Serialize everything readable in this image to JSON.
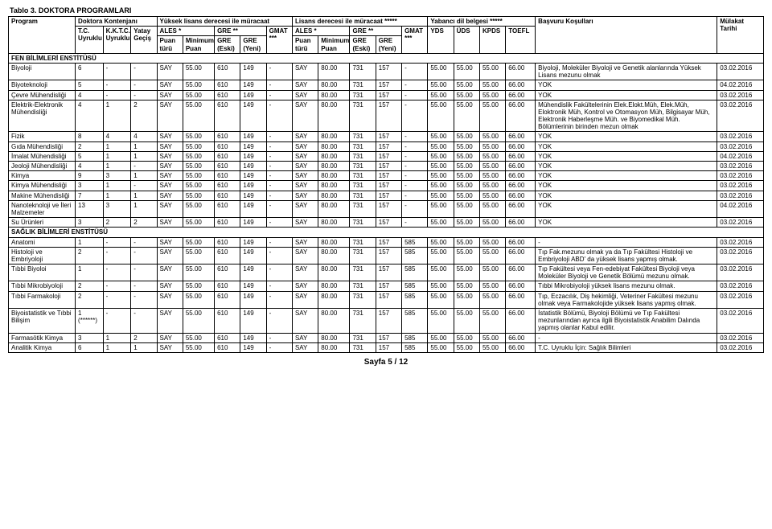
{
  "caption": "Tablo 3. DOKTORA PROGRAMLARI",
  "header": {
    "row1": {
      "program": "Program",
      "kontenjan": "Doktora Kontenjanı",
      "yuksek_lisans": "Yüksek lisans derecesi ile müracaat",
      "lisans": "Lisans derecesi ile müracaat *****",
      "yabanci": "Yabancı dil belgesi *****",
      "basvuru": "Başvuru Koşulları",
      "mulakat": "Mülakat Tarihi"
    },
    "row2": {
      "ales": "ALES *",
      "gre": "GRE **",
      "gmat": "GMAT ***",
      "ales2": "ALES *",
      "gre2": "GRE **",
      "gmat2": "GMAT ***"
    },
    "row3": {
      "tc": "T.C. Uyruklu",
      "kktc": "K.K.T.C. Uyruklu",
      "yatay": "Yatay Geçiş",
      "puanturu": "Puan türü",
      "minpuan": "Minimum Puan",
      "greeski": "GRE (Eski)",
      "greyeni": "GRE (Yeni)",
      "yds": "YDS",
      "uds": "ÜDS",
      "kpds": "KPDS",
      "toefl": "TOEFL"
    }
  },
  "sections": [
    {
      "label": "FEN BİLİMLERİ ENSTİTÜSÜ"
    },
    {
      "label": "SAĞLIK BİLİMLERİ ENSTİTÜSÜ"
    }
  ],
  "rows_fen": [
    {
      "program": "Biyoloji",
      "tc": "6",
      "kktc": "-",
      "yatay": "-",
      "pt": "SAY",
      "min": "55.00",
      "ge": "610",
      "gy": "149",
      "gmat": "-",
      "pt2": "SAY",
      "min2": "80.00",
      "ge2": "731",
      "gy2": "157",
      "gmat2": "-",
      "yds": "55.00",
      "uds": "55.00",
      "kpds": "55.00",
      "toefl": "66.00",
      "bas": "Biyoloji, Moleküler Biyoloji ve Genetik alanlarında Yüksek Lisans mezunu olmak",
      "tar": "03.02.2016"
    },
    {
      "program": "Biyoteknoloji",
      "tc": "5",
      "kktc": "-",
      "yatay": "-",
      "pt": "SAY",
      "min": "55.00",
      "ge": "610",
      "gy": "149",
      "gmat": "-",
      "pt2": "SAY",
      "min2": "80.00",
      "ge2": "731",
      "gy2": "157",
      "gmat2": "-",
      "yds": "55.00",
      "uds": "55.00",
      "kpds": "55.00",
      "toefl": "66.00",
      "bas": "YOK",
      "tar": "04.02.2016"
    },
    {
      "program": "Çevre Mühendisliği",
      "tc": "4",
      "kktc": "-",
      "yatay": "-",
      "pt": "SAY",
      "min": "55.00",
      "ge": "610",
      "gy": "149",
      "gmat": "-",
      "pt2": "SAY",
      "min2": "80.00",
      "ge2": "731",
      "gy2": "157",
      "gmat2": "-",
      "yds": "55.00",
      "uds": "55.00",
      "kpds": "55.00",
      "toefl": "66.00",
      "bas": "YOK",
      "tar": "03.02.2016"
    },
    {
      "program": "Elektrik-Elektronik Mühendisliği",
      "tc": "4",
      "kktc": "1",
      "yatay": "2",
      "pt": "SAY",
      "min": "55.00",
      "ge": "610",
      "gy": "149",
      "gmat": "-",
      "pt2": "SAY",
      "min2": "80.00",
      "ge2": "731",
      "gy2": "157",
      "gmat2": "-",
      "yds": "55.00",
      "uds": "55.00",
      "kpds": "55.00",
      "toefl": "66.00",
      "bas": "Mühendislik Fakültelerinin Elek.Elokt.Müh, Elek.Müh, Eloktronik Müh, Kontrol ve Otomasyon Müh, Bilgisayar Müh, Elektronik Haberleşme Müh. ve Biyomedikal Müh. Bölümlerinin birinden mezun olmak",
      "tar": "03.02.2016"
    },
    {
      "program": "Fizik",
      "tc": "8",
      "kktc": "4",
      "yatay": "4",
      "pt": "SAY",
      "min": "55.00",
      "ge": "610",
      "gy": "149",
      "gmat": "-",
      "pt2": "SAY",
      "min2": "80.00",
      "ge2": "731",
      "gy2": "157",
      "gmat2": "-",
      "yds": "55.00",
      "uds": "55.00",
      "kpds": "55.00",
      "toefl": "66.00",
      "bas": "YOK",
      "tar": "03.02.2016"
    },
    {
      "program": "Gıda Mühendisliği",
      "tc": "2",
      "kktc": "1",
      "yatay": "1",
      "pt": "SAY",
      "min": "55.00",
      "ge": "610",
      "gy": "149",
      "gmat": "-",
      "pt2": "SAY",
      "min2": "80.00",
      "ge2": "731",
      "gy2": "157",
      "gmat2": "-",
      "yds": "55.00",
      "uds": "55.00",
      "kpds": "55.00",
      "toefl": "66.00",
      "bas": "YOK",
      "tar": "03.02.2016"
    },
    {
      "program": "İmalat Mühendisliği",
      "tc": "5",
      "kktc": "1",
      "yatay": "1",
      "pt": "SAY",
      "min": "55.00",
      "ge": "610",
      "gy": "149",
      "gmat": "-",
      "pt2": "SAY",
      "min2": "80.00",
      "ge2": "731",
      "gy2": "157",
      "gmat2": "-",
      "yds": "55.00",
      "uds": "55.00",
      "kpds": "55.00",
      "toefl": "66.00",
      "bas": "YOK",
      "tar": "04.02.2016"
    },
    {
      "program": "Jeoloji Mühendisliği",
      "tc": "4",
      "kktc": "1",
      "yatay": "-",
      "pt": "SAY",
      "min": "55.00",
      "ge": "610",
      "gy": "149",
      "gmat": "-",
      "pt2": "SAY",
      "min2": "80.00",
      "ge2": "731",
      "gy2": "157",
      "gmat2": "-",
      "yds": "55.00",
      "uds": "55.00",
      "kpds": "55.00",
      "toefl": "66.00",
      "bas": "YOK",
      "tar": "03.02.2016"
    },
    {
      "program": "Kimya",
      "tc": "9",
      "kktc": "3",
      "yatay": "1",
      "pt": "SAY",
      "min": "55.00",
      "ge": "610",
      "gy": "149",
      "gmat": "-",
      "pt2": "SAY",
      "min2": "80.00",
      "ge2": "731",
      "gy2": "157",
      "gmat2": "-",
      "yds": "55.00",
      "uds": "55.00",
      "kpds": "55.00",
      "toefl": "66.00",
      "bas": "YOK",
      "tar": "03.02.2016"
    },
    {
      "program": "Kimya Mühendisliği",
      "tc": "3",
      "kktc": "1",
      "yatay": "-",
      "pt": "SAY",
      "min": "55.00",
      "ge": "610",
      "gy": "149",
      "gmat": "-",
      "pt2": "SAY",
      "min2": "80.00",
      "ge2": "731",
      "gy2": "157",
      "gmat2": "-",
      "yds": "55.00",
      "uds": "55.00",
      "kpds": "55.00",
      "toefl": "66.00",
      "bas": "YOK",
      "tar": "03.02.2016"
    },
    {
      "program": "Makine Mühendisliği",
      "tc": "7",
      "kktc": "1",
      "yatay": "1",
      "pt": "SAY",
      "min": "55.00",
      "ge": "610",
      "gy": "149",
      "gmat": "-",
      "pt2": "SAY",
      "min2": "80.00",
      "ge2": "731",
      "gy2": "157",
      "gmat2": "-",
      "yds": "55.00",
      "uds": "55.00",
      "kpds": "55.00",
      "toefl": "66.00",
      "bas": "YOK",
      "tar": "03.02.2016"
    },
    {
      "program": "Nanoteknoloji ve İleri Malzemeler",
      "tc": "13",
      "kktc": "3",
      "yatay": "1",
      "pt": "SAY",
      "min": "55.00",
      "ge": "610",
      "gy": "149",
      "gmat": "-",
      "pt2": "SAY",
      "min2": "80.00",
      "ge2": "731",
      "gy2": "157",
      "gmat2": "-",
      "yds": "55.00",
      "uds": "55.00",
      "kpds": "55.00",
      "toefl": "66.00",
      "bas": "YOK",
      "tar": "04.02.2016"
    },
    {
      "program": "Su Ürünleri",
      "tc": "3",
      "kktc": "2",
      "yatay": "2",
      "pt": "SAY",
      "min": "55.00",
      "ge": "610",
      "gy": "149",
      "gmat": "-",
      "pt2": "SAY",
      "min2": "80.00",
      "ge2": "731",
      "gy2": "157",
      "gmat2": "-",
      "yds": "55.00",
      "uds": "55.00",
      "kpds": "55.00",
      "toefl": "66.00",
      "bas": "YOK",
      "tar": "03.02.2016"
    }
  ],
  "rows_saglik": [
    {
      "program": "Anatomi",
      "tc": "1",
      "kktc": "-",
      "yatay": "-",
      "pt": "SAY",
      "min": "55.00",
      "ge": "610",
      "gy": "149",
      "gmat": "-",
      "pt2": "SAY",
      "min2": "80.00",
      "ge2": "731",
      "gy2": "157",
      "gmat2": "585",
      "yds": "55.00",
      "uds": "55.00",
      "kpds": "55.00",
      "toefl": "66.00",
      "bas": "-",
      "tar": "03.02.2016"
    },
    {
      "program": "Histoloji ve Embriyoloji",
      "tc": "2",
      "kktc": "-",
      "yatay": "-",
      "pt": "SAY",
      "min": "55.00",
      "ge": "610",
      "gy": "149",
      "gmat": "-",
      "pt2": "SAY",
      "min2": "80.00",
      "ge2": "731",
      "gy2": "157",
      "gmat2": "585",
      "yds": "55.00",
      "uds": "55.00",
      "kpds": "55.00",
      "toefl": "66.00",
      "bas": "Tıp Fak.mezunu olmak ya da Tıp Fakültesi Histoloji ve Embriyoloji ABD' da yüksek lisans yapmış olmak.",
      "tar": "03.02.2016"
    },
    {
      "program": "Tıbbi Biyoloi",
      "tc": "1",
      "kktc": "-",
      "yatay": "-",
      "pt": "SAY",
      "min": "55.00",
      "ge": "610",
      "gy": "149",
      "gmat": "-",
      "pt2": "SAY",
      "min2": "80.00",
      "ge2": "731",
      "gy2": "157",
      "gmat2": "585",
      "yds": "55.00",
      "uds": "55.00",
      "kpds": "55.00",
      "toefl": "66.00",
      "bas": "Tıp Fakültesi veya Fen-edebiyat Fakültesi Biyoloji veya Moleküler Biyoloji ve Genetik Bölümü mezunu olmak.",
      "tar": "03.02.2016"
    },
    {
      "program": "Tıbbi Mikrobiyoloji",
      "tc": "2",
      "kktc": "-",
      "yatay": "-",
      "pt": "SAY",
      "min": "55.00",
      "ge": "610",
      "gy": "149",
      "gmat": "-",
      "pt2": "SAY",
      "min2": "80.00",
      "ge2": "731",
      "gy2": "157",
      "gmat2": "585",
      "yds": "55.00",
      "uds": "55.00",
      "kpds": "55.00",
      "toefl": "66.00",
      "bas": "Tıbbi Mikrobiyoloji yüksek lisans mezunu olmak.",
      "tar": "03.02.2016"
    },
    {
      "program": "Tıbbi Farmakoloji",
      "tc": "2",
      "kktc": "-",
      "yatay": "-",
      "pt": "SAY",
      "min": "55.00",
      "ge": "610",
      "gy": "149",
      "gmat": "-",
      "pt2": "SAY",
      "min2": "80.00",
      "ge2": "731",
      "gy2": "157",
      "gmat2": "585",
      "yds": "55.00",
      "uds": "55.00",
      "kpds": "55.00",
      "toefl": "66.00",
      "bas": "Tıp, Eczacılık, Diş hekimliği, Veteriner Fakültesi mezunu olmak veya Farmakolojide yüksek lisans yapmış olmak.",
      "tar": "03.02.2016"
    },
    {
      "program": "Biyoistatistik ve Tıbbi Bilişim",
      "tc": "1 (******)",
      "kktc": "-",
      "yatay": "-",
      "pt": "SAY",
      "min": "55.00",
      "ge": "610",
      "gy": "149",
      "gmat": "-",
      "pt2": "SAY",
      "min2": "80.00",
      "ge2": "731",
      "gy2": "157",
      "gmat2": "585",
      "yds": "55.00",
      "uds": "55.00",
      "kpds": "55.00",
      "toefl": "66.00",
      "bas": "İstatistik Bölümü, Biyoloji Bölümü ve Tıp Fakültesi mezunlarından ayrıca ilgili Biyoistatistik Anabilim Dalında yapmış olanlar Kabul edilir.",
      "tar": "03.02.2016"
    },
    {
      "program": "Farmasötik Kimya",
      "tc": "3",
      "kktc": "1",
      "yatay": "2",
      "pt": "SAY",
      "min": "55.00",
      "ge": "610",
      "gy": "149",
      "gmat": "-",
      "pt2": "SAY",
      "min2": "80.00",
      "ge2": "731",
      "gy2": "157",
      "gmat2": "585",
      "yds": "55.00",
      "uds": "55.00",
      "kpds": "55.00",
      "toefl": "66.00",
      "bas": "-",
      "tar": "03.02.2016"
    },
    {
      "program": "Analitik Kimya",
      "tc": "6",
      "kktc": "1",
      "yatay": "1",
      "pt": "SAY",
      "min": "55.00",
      "ge": "610",
      "gy": "149",
      "gmat": "-",
      "pt2": "SAY",
      "min2": "80.00",
      "ge2": "731",
      "gy2": "157",
      "gmat2": "585",
      "yds": "55.00",
      "uds": "55.00",
      "kpds": "55.00",
      "toefl": "66.00",
      "bas": "T.C. Uyruklu İçin: Sağlık Bilimleri",
      "tar": "03.02.2016"
    }
  ],
  "footer": "Sayfa 5 / 12"
}
